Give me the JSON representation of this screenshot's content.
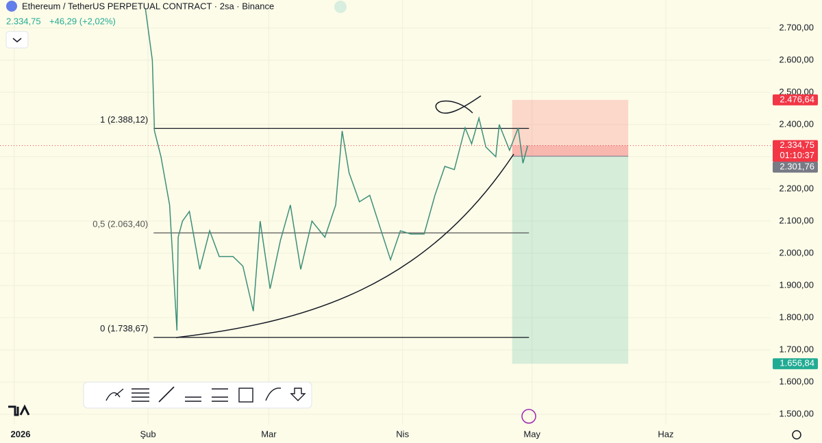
{
  "chart_data": {
    "type": "line",
    "title": "Ethereum / TetherUS PERPETUAL CONTRACT · 2sa · Binance",
    "header_price": "2.334,75",
    "header_change": "+46,29 (+2,02%)",
    "xlim": [
      -3.3,
      175.3
    ],
    "ylim": [
      1468,
      2787
    ],
    "xticks": [
      {
        "value": 0,
        "label": "2026"
      },
      {
        "value": 31,
        "label": "Şub"
      },
      {
        "value": 59,
        "label": "Mar"
      },
      {
        "value": 90,
        "label": "Nis"
      },
      {
        "value": 120,
        "label": "May"
      },
      {
        "value": 151,
        "label": "Haz"
      }
    ],
    "yticks": [
      {
        "value": 1500,
        "label": "1.500,00"
      },
      {
        "value": 1600,
        "label": "1.600,00"
      },
      {
        "value": 1700,
        "label": "1.700,00"
      },
      {
        "value": 1800,
        "label": "1.800,00"
      },
      {
        "value": 1900,
        "label": "1.900,00"
      },
      {
        "value": 2000,
        "label": "2.000,00"
      },
      {
        "value": 2100,
        "label": "2.100,00"
      },
      {
        "value": 2200,
        "label": "2.200,00"
      },
      {
        "value": 2300,
        "label": "2.300,00"
      },
      {
        "value": 2400,
        "label": "2.400,00"
      },
      {
        "value": 2500,
        "label": "2.500,00"
      },
      {
        "value": 2600,
        "label": "2.600,00"
      },
      {
        "value": 2700,
        "label": "2.700,00"
      }
    ],
    "grid": true,
    "series": [
      {
        "color": "#3b8f7a",
        "x": [
          30.4,
          32,
          32.5,
          34,
          36,
          37.7,
          38,
          39,
          40.6,
          43,
          45.3,
          47.5,
          50.7,
          53,
          55.4,
          57,
          59.3,
          61.7,
          64,
          66.4,
          69,
          72,
          74.5,
          76,
          77.6,
          80,
          82.4,
          84.8,
          87.2,
          89.5,
          91.9,
          95,
          97.5,
          99.8,
          102,
          104.5,
          106,
          107.7,
          109.3,
          111.6,
          112.4,
          114.8,
          116.8,
          117.9,
          119
        ],
        "values": [
          2760,
          2600,
          2380,
          2300,
          2150,
          1760,
          2050,
          2100,
          2130,
          1950,
          2070,
          1990,
          1990,
          1960,
          1820,
          2100,
          1890,
          2040,
          2150,
          1950,
          2100,
          2050,
          2150,
          2380,
          2250,
          2160,
          2180,
          2080,
          1980,
          2070,
          2060,
          2060,
          2180,
          2270,
          2260,
          2390,
          2340,
          2420,
          2330,
          2300,
          2400,
          2320,
          2390,
          2280,
          2335
        ]
      }
    ],
    "fib_range": [
      32.3,
      119.3
    ],
    "fib_levels": [
      {
        "label": "1 (2.388,12)",
        "value": 2388.12
      },
      {
        "label": "0,5 (2.063,40)",
        "value": 2063.4
      },
      {
        "label": "0 (1.738,67)",
        "value": 1738.67
      }
    ],
    "position": {
      "x": [
        115.4,
        142.3
      ],
      "stop": {
        "value": 2476.64,
        "label": "2.476,64",
        "color": "#f23645"
      },
      "entry": {
        "value": 2301.76,
        "label": "2.301,76",
        "color": "#787b86"
      },
      "target": {
        "value": 1656.84,
        "label": "1.656,84",
        "color": "#22ab94"
      }
    },
    "last": {
      "value": 2334.75,
      "label": "2.334,75",
      "countdown": "01:10:37",
      "color": "#f23645"
    }
  }
}
